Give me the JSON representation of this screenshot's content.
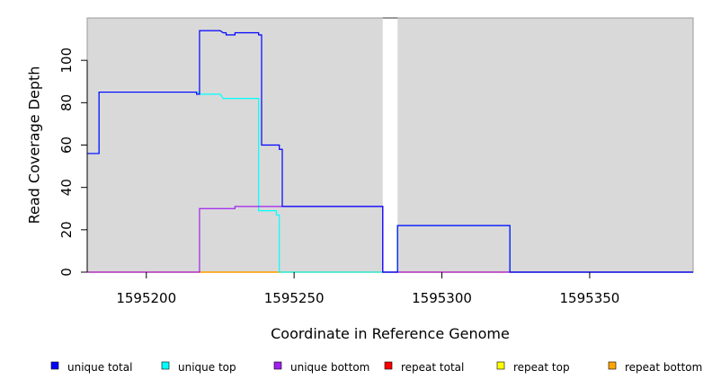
{
  "chart_data": {
    "type": "line",
    "step": true,
    "xlabel": "Coordinate in Reference Genome",
    "ylabel": "Read Coverage Depth",
    "xlim": [
      1595180,
      1595385
    ],
    "ylim": [
      0,
      120
    ],
    "x_ticks": [
      1595200,
      1595250,
      1595300,
      1595350
    ],
    "y_ticks": [
      0,
      20,
      40,
      60,
      80,
      100
    ],
    "background": "#d9d9d9",
    "gap_region": [
      1595280,
      1595285
    ],
    "legend_position": "bottom",
    "series": [
      {
        "name": "repeat total",
        "color": "#ff0000",
        "points": [
          [
            1595180,
            0
          ],
          [
            1595385,
            0
          ]
        ]
      },
      {
        "name": "repeat top",
        "color": "#ffff00",
        "points": [
          [
            1595180,
            0
          ],
          [
            1595385,
            0
          ]
        ]
      },
      {
        "name": "repeat bottom",
        "color": "#ffa500",
        "points": [
          [
            1595218,
            0
          ],
          [
            1595245,
            0
          ]
        ]
      },
      {
        "name": "unique top",
        "color": "#00ffff",
        "points": [
          [
            1595180,
            56
          ],
          [
            1595184,
            56
          ],
          [
            1595184,
            85
          ],
          [
            1595218,
            85
          ],
          [
            1595218,
            84
          ],
          [
            1595225,
            84
          ],
          [
            1595226,
            82
          ],
          [
            1595238,
            82
          ],
          [
            1595238,
            29
          ],
          [
            1595244,
            29
          ],
          [
            1595244,
            27
          ],
          [
            1595245,
            27
          ],
          [
            1595245,
            0
          ],
          [
            1595280,
            0
          ],
          [
            1595285,
            0
          ],
          [
            1595285,
            22
          ],
          [
            1595323,
            22
          ],
          [
            1595323,
            0
          ],
          [
            1595385,
            0
          ]
        ]
      },
      {
        "name": "unique bottom",
        "color": "#a020f0",
        "points": [
          [
            1595180,
            0
          ],
          [
            1595218,
            0
          ],
          [
            1595218,
            30
          ],
          [
            1595230,
            30
          ],
          [
            1595230,
            31
          ],
          [
            1595280,
            31
          ],
          [
            1595280,
            0
          ],
          [
            1595385,
            0
          ]
        ]
      },
      {
        "name": "unique total",
        "color": "#0000ff",
        "points": [
          [
            1595180,
            56
          ],
          [
            1595184,
            56
          ],
          [
            1595184,
            85
          ],
          [
            1595217,
            85
          ],
          [
            1595217,
            84
          ],
          [
            1595218,
            84
          ],
          [
            1595218,
            114
          ],
          [
            1595225,
            114
          ],
          [
            1595226,
            113
          ],
          [
            1595227,
            113
          ],
          [
            1595227,
            112
          ],
          [
            1595230,
            112
          ],
          [
            1595230,
            113
          ],
          [
            1595238,
            113
          ],
          [
            1595238,
            112
          ],
          [
            1595239,
            112
          ],
          [
            1595239,
            60
          ],
          [
            1595245,
            60
          ],
          [
            1595245,
            58
          ],
          [
            1595246,
            58
          ],
          [
            1595246,
            31
          ],
          [
            1595280,
            31
          ],
          [
            1595280,
            0
          ],
          [
            1595285,
            0
          ],
          [
            1595285,
            22
          ],
          [
            1595323,
            22
          ],
          [
            1595323,
            0
          ],
          [
            1595385,
            0
          ]
        ]
      }
    ]
  },
  "legend": [
    {
      "name": "unique total",
      "color": "#0000ff"
    },
    {
      "name": "unique top",
      "color": "#00ffff"
    },
    {
      "name": "unique bottom",
      "color": "#a020f0"
    },
    {
      "name": "repeat total",
      "color": "#ff0000"
    },
    {
      "name": "repeat top",
      "color": "#ffff00"
    },
    {
      "name": "repeat bottom",
      "color": "#ffa500"
    }
  ]
}
